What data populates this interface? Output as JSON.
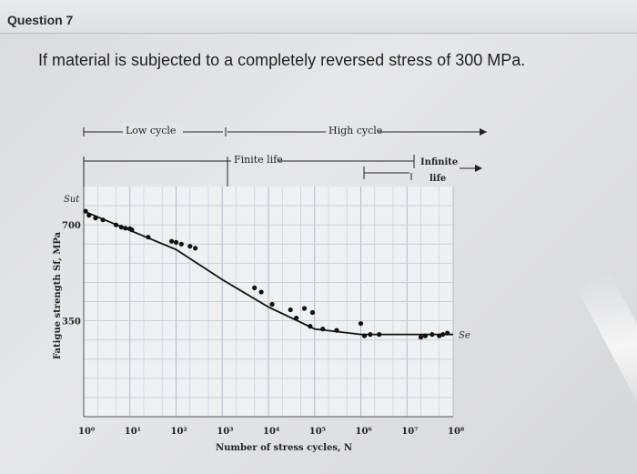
{
  "header": {
    "title": "Question 7"
  },
  "question": {
    "text": "If material is subjected to a completely reversed stress of 300 MPa."
  },
  "regions": {
    "low_cycle": "Low cycle",
    "high_cycle": "High cycle",
    "finite_life": "Finite life",
    "infinite_life_line1": "Infinite",
    "infinite_life_line2": "life"
  },
  "chart_data": {
    "type": "line",
    "title": "",
    "xlabel": "Number of stress cycles, N",
    "ylabel": "Fatigue strength Sf, MPa",
    "x_scale": "log",
    "xlim": [
      1,
      100000000
    ],
    "ylim": [
      0,
      840
    ],
    "x_ticks": [
      {
        "value": 1,
        "label": "10⁰"
      },
      {
        "value": 10,
        "label": "10¹"
      },
      {
        "value": 100,
        "label": "10²"
      },
      {
        "value": 1000,
        "label": "10³"
      },
      {
        "value": 10000,
        "label": "10⁴"
      },
      {
        "value": 100000,
        "label": "10⁵"
      },
      {
        "value": 1000000,
        "label": "10⁶"
      },
      {
        "value": 10000000,
        "label": "10⁷"
      },
      {
        "value": 100000000,
        "label": "10⁸"
      }
    ],
    "y_ticks": [
      {
        "value": 700,
        "label": "700"
      },
      {
        "value": 350,
        "label": "350"
      }
    ],
    "y_annotations": [
      {
        "value": 750,
        "label": "Sut"
      },
      {
        "value": 300,
        "label": "Se"
      }
    ],
    "grid": true,
    "series": [
      {
        "points": [
          [
            1,
            750
          ],
          [
            10,
            680
          ],
          [
            100,
            610
          ],
          [
            1000,
            500
          ],
          [
            10000,
            400
          ],
          [
            100000,
            320
          ],
          [
            1000000,
            300
          ],
          [
            100000000,
            300
          ]
        ]
      }
    ],
    "scatter": [
      [
        1.1,
        750
      ],
      [
        1.3,
        735
      ],
      [
        1.8,
        725
      ],
      [
        2.6,
        718
      ],
      [
        5,
        700
      ],
      [
        6.5,
        692
      ],
      [
        8,
        688
      ],
      [
        10,
        686
      ],
      [
        11,
        682
      ],
      [
        25,
        655
      ],
      [
        80,
        640
      ],
      [
        100,
        636
      ],
      [
        130,
        630
      ],
      [
        200,
        622
      ],
      [
        260,
        615
      ],
      [
        5000,
        470
      ],
      [
        7000,
        455
      ],
      [
        12000,
        410
      ],
      [
        30000,
        390
      ],
      [
        40000,
        360
      ],
      [
        60000,
        395
      ],
      [
        90000,
        380
      ],
      [
        80000,
        330
      ],
      [
        150000,
        320
      ],
      [
        300000,
        315
      ],
      [
        1000000,
        340
      ],
      [
        1200000,
        295
      ],
      [
        1600000,
        300
      ],
      [
        2500000,
        300
      ],
      [
        20000000,
        290
      ],
      [
        25000000,
        295
      ],
      [
        35000000,
        300
      ],
      [
        50000000,
        295
      ],
      [
        60000000,
        300
      ],
      [
        75000000,
        305
      ]
    ]
  }
}
